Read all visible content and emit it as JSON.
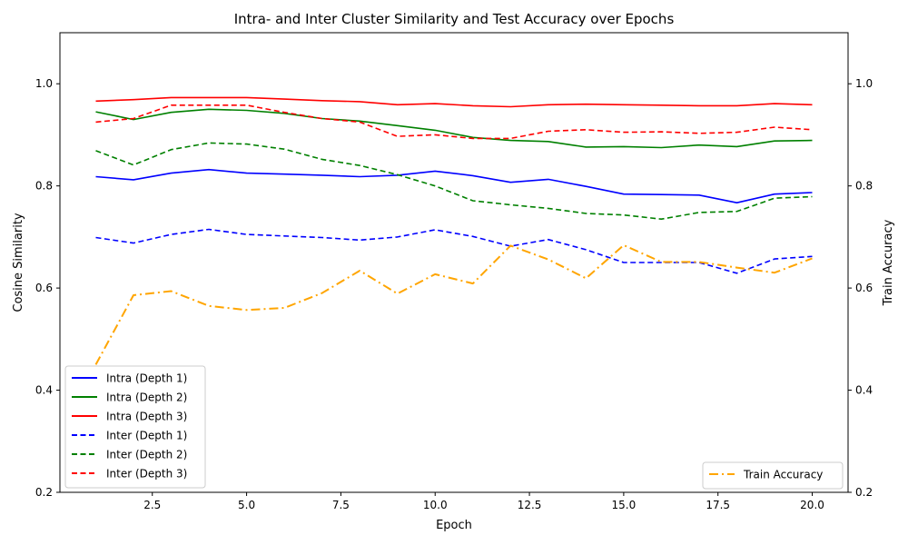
{
  "chart_data": {
    "type": "line",
    "title": "Intra- and Inter Cluster Similarity and Test Accuracy over Epochs",
    "xlabel": "Epoch",
    "ylabel": "Cosine Similarity",
    "ylabel_right": "Train Accuracy",
    "xlim": [
      0.05,
      20.95
    ],
    "ylim": [
      0.2,
      1.1
    ],
    "ylim_right": [
      0.2,
      1.1
    ],
    "x_ticks": [
      2.5,
      5.0,
      7.5,
      10.0,
      12.5,
      15.0,
      17.5,
      20.0
    ],
    "x_tick_labels": [
      "2.5",
      "5.0",
      "7.5",
      "10.0",
      "12.5",
      "15.0",
      "17.5",
      "20.0"
    ],
    "y_ticks": [
      0.2,
      0.4,
      0.6,
      0.8,
      1.0
    ],
    "y_tick_labels": [
      "0.2",
      "0.4",
      "0.6",
      "0.8",
      "1.0"
    ],
    "grid": false,
    "legend_left_position": "lower-left",
    "legend_right_position": "lower-right",
    "x": [
      1,
      2,
      3,
      4,
      5,
      6,
      7,
      8,
      9,
      10,
      11,
      12,
      13,
      14,
      15,
      16,
      17,
      18,
      19,
      20
    ],
    "series": [
      {
        "name": "Intra (Depth 1)",
        "axis": "left",
        "color": "#0000ff",
        "style": "solid",
        "values": [
          0.818,
          0.812,
          0.825,
          0.832,
          0.825,
          0.823,
          0.821,
          0.818,
          0.821,
          0.829,
          0.82,
          0.807,
          0.813,
          0.799,
          0.784,
          0.783,
          0.782,
          0.767,
          0.784,
          0.787
        ]
      },
      {
        "name": "Intra (Depth 2)",
        "axis": "left",
        "color": "#008000",
        "style": "solid",
        "values": [
          0.945,
          0.93,
          0.944,
          0.95,
          0.948,
          0.942,
          0.932,
          0.927,
          0.918,
          0.909,
          0.895,
          0.889,
          0.887,
          0.876,
          0.877,
          0.875,
          0.88,
          0.877,
          0.888,
          0.889
        ]
      },
      {
        "name": "Intra (Depth 3)",
        "axis": "left",
        "color": "#ff0000",
        "style": "solid",
        "values": [
          0.966,
          0.969,
          0.973,
          0.973,
          0.973,
          0.97,
          0.967,
          0.965,
          0.959,
          0.961,
          0.957,
          0.955,
          0.959,
          0.96,
          0.959,
          0.958,
          0.957,
          0.957,
          0.961,
          0.959
        ]
      },
      {
        "name": "Inter (Depth 1)",
        "axis": "left",
        "color": "#0000ff",
        "style": "dashed",
        "values": [
          0.699,
          0.688,
          0.705,
          0.715,
          0.705,
          0.702,
          0.699,
          0.694,
          0.7,
          0.714,
          0.701,
          0.682,
          0.695,
          0.675,
          0.65,
          0.65,
          0.65,
          0.629,
          0.657,
          0.662
        ]
      },
      {
        "name": "Inter (Depth 2)",
        "axis": "left",
        "color": "#008000",
        "style": "dashed",
        "values": [
          0.869,
          0.841,
          0.871,
          0.884,
          0.882,
          0.872,
          0.852,
          0.84,
          0.822,
          0.8,
          0.771,
          0.763,
          0.756,
          0.746,
          0.743,
          0.735,
          0.748,
          0.75,
          0.776,
          0.779
        ]
      },
      {
        "name": "Inter (Depth 3)",
        "axis": "left",
        "color": "#ff0000",
        "style": "dashed",
        "values": [
          0.925,
          0.932,
          0.958,
          0.958,
          0.958,
          0.944,
          0.932,
          0.925,
          0.897,
          0.9,
          0.893,
          0.893,
          0.907,
          0.91,
          0.905,
          0.906,
          0.903,
          0.905,
          0.915,
          0.91
        ]
      },
      {
        "name": "Train Accuracy",
        "axis": "right",
        "color": "#ffa500",
        "style": "dashdot",
        "values": [
          0.45,
          0.586,
          0.594,
          0.565,
          0.557,
          0.561,
          0.59,
          0.634,
          0.589,
          0.627,
          0.609,
          0.683,
          0.656,
          0.619,
          0.684,
          0.651,
          0.651,
          0.64,
          0.63,
          0.658
        ]
      }
    ]
  }
}
